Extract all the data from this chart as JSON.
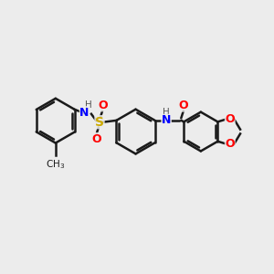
{
  "bg_color": "#ececec",
  "bond_color": "#1a1a1a",
  "atom_colors": {
    "N": "#0000ff",
    "O": "#ff0000",
    "S": "#ccaa00",
    "C": "#1a1a1a",
    "H": "#555555"
  },
  "figsize": [
    3.0,
    3.0
  ],
  "dpi": 100
}
